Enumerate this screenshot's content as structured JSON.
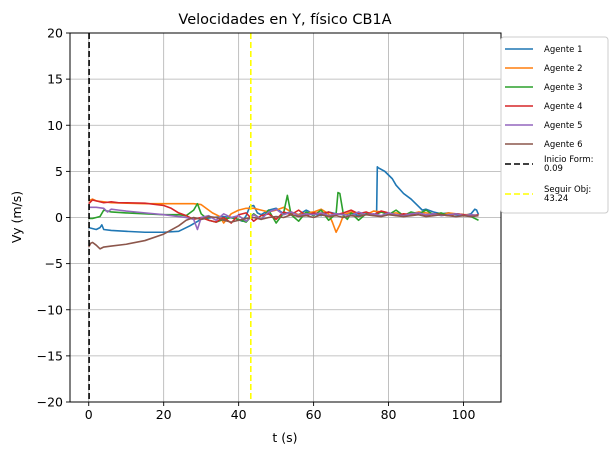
{
  "chart_data": {
    "type": "line",
    "title": "Velocidades en Y, físico CB1A",
    "xlabel": "t (s)",
    "ylabel": "Vy (m/s)",
    "xlim": [
      -5,
      110
    ],
    "ylim": [
      -20,
      20
    ],
    "xticks": [
      0,
      20,
      40,
      60,
      80,
      100
    ],
    "yticks": [
      -20,
      -15,
      -10,
      -5,
      0,
      5,
      10,
      15,
      20
    ],
    "xtick_labels": [
      "0",
      "20",
      "40",
      "60",
      "80",
      "100"
    ],
    "ytick_labels": [
      "−20",
      "−15",
      "−10",
      "−5",
      "0",
      "5",
      "10",
      "15",
      "20"
    ],
    "grid": true,
    "legend_position": "outside-right-top",
    "series": [
      {
        "name": "Agente 1",
        "color": "#1f77b4",
        "x": [
          0,
          2,
          3,
          3.5,
          4,
          6,
          10,
          15,
          20,
          24,
          27,
          30,
          33,
          36,
          39,
          41,
          42,
          43,
          44,
          45,
          46,
          48,
          50,
          52,
          54,
          56,
          58,
          60,
          62,
          64,
          66,
          68,
          70,
          72,
          74,
          76,
          76.8,
          77,
          77.2,
          79,
          81,
          82,
          84,
          86,
          88,
          89,
          90,
          92,
          94,
          96,
          98,
          100,
          102,
          103,
          103.5,
          104
        ],
        "y": [
          -1.1,
          -1.3,
          -1.1,
          -0.8,
          -1.3,
          -1.4,
          -1.5,
          -1.6,
          -1.6,
          -1.5,
          -0.9,
          -0.2,
          0,
          0.1,
          -0.1,
          -0.4,
          0.2,
          1.2,
          1.3,
          0.5,
          0.3,
          0.8,
          1,
          0.4,
          0.6,
          0.3,
          0.8,
          0.4,
          0.2,
          0.6,
          0.4,
          0.3,
          0.5,
          0.2,
          0.4,
          0.3,
          0.2,
          5.5,
          5.4,
          5,
          4.2,
          3.5,
          2.6,
          2,
          1.2,
          0.8,
          0.9,
          0.6,
          0.4,
          0.5,
          0.3,
          0.2,
          0.4,
          0.9,
          0.8,
          0.3
        ]
      },
      {
        "name": "Agente 2",
        "color": "#ff7f0e",
        "x": [
          0,
          1,
          2,
          4,
          6,
          10,
          15,
          20,
          25,
          28,
          30,
          33,
          35,
          36,
          38,
          40,
          42,
          44,
          46,
          48,
          50,
          52,
          54,
          56,
          58,
          60,
          62,
          64,
          65,
          66,
          67,
          68,
          70,
          72,
          74,
          76,
          78,
          80,
          82,
          84,
          86,
          88,
          90,
          92,
          94,
          96,
          98,
          100,
          102,
          104
        ],
        "y": [
          1.8,
          2,
          1.8,
          1.7,
          1.6,
          1.55,
          1.5,
          1.5,
          1.5,
          1.5,
          1.4,
          0.5,
          0.1,
          -0.6,
          0.4,
          0.8,
          1,
          1,
          0.8,
          0.6,
          0.8,
          1.1,
          0.6,
          0.3,
          0.5,
          0.6,
          0.9,
          0.4,
          -0.5,
          -1.6,
          -0.8,
          0.3,
          0.6,
          0.5,
          0.3,
          0.7,
          0.6,
          0.4,
          0.5,
          0.3,
          0.4,
          0.6,
          0.5,
          0.4,
          0.3,
          0.5,
          0.4,
          0.3,
          0.3,
          0.2
        ]
      },
      {
        "name": "Agente 3",
        "color": "#2ca02c",
        "x": [
          0,
          1,
          2,
          3,
          4,
          6,
          10,
          15,
          20,
          24,
          26,
          28,
          29,
          30,
          32,
          34,
          36,
          38,
          40,
          42,
          44,
          46,
          48,
          50,
          52,
          53,
          54,
          56,
          58,
          60,
          62,
          64,
          66,
          66.5,
          67,
          68,
          69,
          70,
          72,
          74,
          76,
          78,
          80,
          82,
          84,
          86,
          88,
          90,
          92,
          94,
          96,
          98,
          100,
          102,
          104
        ],
        "y": [
          -0.1,
          -0.1,
          0,
          0.1,
          0.8,
          0.6,
          0.5,
          0.4,
          0.3,
          0.3,
          0.2,
          0.8,
          1.5,
          0.4,
          -0.3,
          -0.5,
          -0.2,
          0,
          -0.2,
          -0.5,
          0.4,
          -0.2,
          0.8,
          -0.6,
          0.5,
          2.4,
          0.3,
          -0.4,
          0.6,
          0.2,
          0.8,
          -0.3,
          0.4,
          2.7,
          2.6,
          0.2,
          -0.2,
          0.5,
          -0.3,
          0.4,
          0.2,
          0.6,
          0.3,
          0.8,
          0.2,
          0.6,
          0.4,
          0.8,
          0.3,
          0.5,
          0.2,
          0.4,
          0.3,
          0.1,
          -0.3
        ]
      },
      {
        "name": "Agente 4",
        "color": "#d62728",
        "x": [
          0,
          1,
          2,
          4,
          6,
          8,
          10,
          15,
          20,
          22,
          24,
          26,
          28,
          30,
          32,
          34,
          36,
          38,
          40,
          42,
          44,
          46,
          48,
          50,
          52,
          54,
          56,
          58,
          60,
          62,
          64,
          66,
          68,
          70,
          72,
          74,
          76,
          78,
          80,
          82,
          84,
          86,
          88,
          90,
          92,
          94,
          96,
          98,
          100,
          102,
          104
        ],
        "y": [
          1.5,
          1.9,
          1.8,
          1.6,
          1.7,
          1.6,
          1.6,
          1.55,
          1.3,
          1,
          0.5,
          0.2,
          -0.2,
          0,
          -0.3,
          -0.5,
          0,
          -0.6,
          0.3,
          0.5,
          -0.4,
          0.2,
          0.4,
          -0.2,
          0.6,
          0.3,
          0.8,
          0.2,
          0.5,
          0.4,
          0.6,
          0.3,
          0.5,
          0.8,
          0.4,
          0.6,
          0.3,
          0.7,
          0.5,
          0.2,
          0.4,
          0.3,
          0.5,
          0.2,
          0.4,
          0.3,
          0.2,
          0.4,
          0.3,
          0.2,
          0.3
        ]
      },
      {
        "name": "Agente 5",
        "color": "#9467bd",
        "x": [
          0,
          1,
          2,
          4,
          5,
          6,
          8,
          10,
          15,
          20,
          24,
          26,
          28,
          29,
          30,
          32,
          34,
          36,
          38,
          40,
          42,
          44,
          46,
          48,
          50,
          52,
          54,
          56,
          58,
          60,
          62,
          64,
          66,
          68,
          70,
          72,
          74,
          76,
          78,
          80,
          82,
          84,
          86,
          88,
          90,
          92,
          94,
          96,
          98,
          100,
          102,
          104
        ],
        "y": [
          1.1,
          1.1,
          1.1,
          1.0,
          0.6,
          0.9,
          0.8,
          0.7,
          0.5,
          0.3,
          0.1,
          0,
          -0.2,
          -1.3,
          0,
          0.2,
          -0.3,
          0.4,
          0,
          0.2,
          -0.4,
          0.3,
          -0.2,
          0.6,
          0.9,
          0.3,
          0.6,
          0.2,
          0.4,
          0.3,
          0.5,
          0.2,
          0.4,
          0.3,
          0.2,
          0.6,
          0.3,
          0.4,
          0.2,
          0.5,
          0.3,
          0.2,
          0.4,
          0.5,
          0.3,
          0.4,
          0.2,
          0.3,
          0.4,
          0.2,
          0.3,
          0.2
        ]
      },
      {
        "name": "Agente 6",
        "color": "#8c564b",
        "x": [
          0,
          0.5,
          1,
          2,
          3,
          4,
          6,
          10,
          15,
          20,
          24,
          26,
          28,
          30,
          32,
          34,
          36,
          38,
          40,
          42,
          44,
          46,
          48,
          50,
          52,
          54,
          56,
          58,
          60,
          62,
          64,
          66,
          68,
          70,
          72,
          74,
          76,
          78,
          80,
          82,
          84,
          86,
          88,
          90,
          92,
          94,
          96,
          98,
          100,
          102,
          104
        ],
        "y": [
          -3.2,
          -2.8,
          -2.7,
          -3,
          -3.4,
          -3.2,
          -3.1,
          -2.9,
          -2.5,
          -1.8,
          -0.9,
          -0.3,
          0,
          -0.2,
          0.1,
          0,
          -0.3,
          -0.5,
          -0.3,
          -0.1,
          0,
          -0.2,
          0,
          0.1,
          0,
          0.3,
          0.1,
          0.2,
          0,
          0.3,
          0.1,
          0.2,
          0,
          0.2,
          0.1,
          0.3,
          0.2,
          0.1,
          0.3,
          0.2,
          0.1,
          0.2,
          0.3,
          0.1,
          0.2,
          0.3,
          0.2,
          0.1,
          0.2,
          0.1,
          0.2
        ]
      }
    ],
    "vlines": [
      {
        "name": "Inicio Form: 0.09",
        "label_lines": [
          "Inicio Form:",
          "0.09"
        ],
        "x": 0.09,
        "color": "#000000"
      },
      {
        "name": "Seguir Obj: 43.24",
        "label_lines": [
          "Seguir Obj:",
          "43.24"
        ],
        "x": 43.24,
        "color": "#ffff00"
      }
    ]
  }
}
